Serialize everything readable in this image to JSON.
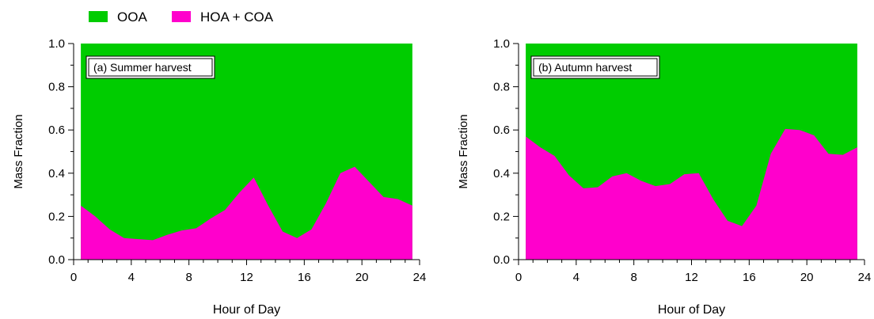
{
  "legend": {
    "items": [
      {
        "label": "OOA",
        "color": "#00cc00"
      },
      {
        "label": "HOA + COA",
        "color": "#ff00cc"
      }
    ]
  },
  "chart_data": [
    {
      "type": "area",
      "stacked": true,
      "title": "(a) Summer harvest",
      "xlabel": "Hour of Day",
      "ylabel": "Mass Fraction",
      "xlim": [
        0,
        24
      ],
      "ylim": [
        0,
        1.0
      ],
      "xticks": [
        0,
        4,
        8,
        12,
        16,
        20,
        24
      ],
      "xtick_labels": [
        "0",
        "4",
        "8",
        "12",
        "16",
        "20",
        "24"
      ],
      "yticks": [
        0.0,
        0.2,
        0.4,
        0.6,
        0.8,
        1.0
      ],
      "ytick_labels": [
        "0.0",
        "0.2",
        "0.4",
        "0.6",
        "0.8",
        "1.0"
      ],
      "x": [
        0.5,
        1.5,
        2.5,
        3.5,
        4.5,
        5.5,
        6.5,
        7.5,
        8.5,
        9.5,
        10.5,
        11.5,
        12.5,
        13.5,
        14.5,
        15.5,
        16.5,
        17.5,
        18.5,
        19.5,
        20.5,
        21.5,
        22.5,
        23.5
      ],
      "series": [
        {
          "name": "HOA + COA",
          "values": [
            0.25,
            0.2,
            0.14,
            0.1,
            0.095,
            0.09,
            0.115,
            0.135,
            0.145,
            0.19,
            0.23,
            0.31,
            0.38,
            0.25,
            0.13,
            0.1,
            0.14,
            0.26,
            0.4,
            0.43,
            0.36,
            0.29,
            0.28,
            0.25
          ]
        },
        {
          "name": "OOA",
          "values": [
            0.75,
            0.8,
            0.86,
            0.9,
            0.905,
            0.91,
            0.885,
            0.865,
            0.855,
            0.81,
            0.77,
            0.69,
            0.62,
            0.75,
            0.87,
            0.9,
            0.86,
            0.74,
            0.6,
            0.57,
            0.64,
            0.71,
            0.72,
            0.75
          ]
        }
      ]
    },
    {
      "type": "area",
      "stacked": true,
      "title": "(b) Autumn harvest",
      "xlabel": "Hour of Day",
      "ylabel": "Mass Fraction",
      "xlim": [
        0,
        24
      ],
      "ylim": [
        0,
        1.0
      ],
      "xticks": [
        0,
        4,
        8,
        12,
        16,
        20,
        24
      ],
      "xtick_labels": [
        "0",
        "4",
        "8",
        "12",
        "16",
        "20",
        "24"
      ],
      "yticks": [
        0.0,
        0.2,
        0.4,
        0.6,
        0.8,
        1.0
      ],
      "ytick_labels": [
        "0.0",
        "0.2",
        "0.4",
        "0.6",
        "0.8",
        "1.0"
      ],
      "x": [
        0.5,
        1.5,
        2.5,
        3.5,
        4.5,
        5.5,
        6.5,
        7.5,
        8.5,
        9.5,
        10.5,
        11.5,
        12.5,
        13.5,
        14.5,
        15.5,
        16.5,
        17.5,
        18.5,
        19.5,
        20.5,
        21.5,
        22.5,
        23.5
      ],
      "series": [
        {
          "name": "HOA + COA",
          "values": [
            0.57,
            0.52,
            0.48,
            0.39,
            0.33,
            0.335,
            0.385,
            0.4,
            0.365,
            0.34,
            0.35,
            0.395,
            0.4,
            0.28,
            0.18,
            0.155,
            0.25,
            0.49,
            0.605,
            0.6,
            0.575,
            0.49,
            0.485,
            0.52
          ]
        },
        {
          "name": "OOA",
          "values": [
            0.43,
            0.48,
            0.52,
            0.61,
            0.67,
            0.665,
            0.615,
            0.6,
            0.635,
            0.66,
            0.65,
            0.605,
            0.6,
            0.72,
            0.82,
            0.845,
            0.75,
            0.51,
            0.395,
            0.4,
            0.425,
            0.51,
            0.515,
            0.48
          ]
        }
      ]
    }
  ]
}
